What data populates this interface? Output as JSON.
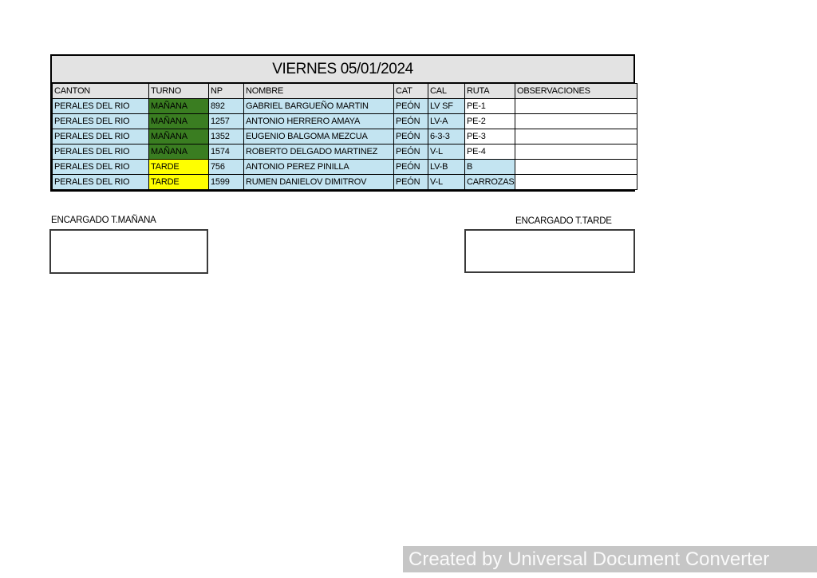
{
  "table": {
    "title": "VIERNES 05/01/2024",
    "columns": [
      "CANTON",
      "TURNO",
      "NP",
      "NOMBRE",
      "CAT",
      "CAL",
      "RUTA",
      "OBSERVACIONES"
    ],
    "rows": [
      {
        "canton": "PERALES DEL RIO",
        "turno": "MAÑANA",
        "turno_color": "green",
        "np": "892",
        "nombre": "GABRIEL BARGUEÑO MARTIN",
        "cat": "PEÓN",
        "cal": "LV SF",
        "ruta": "PE-1",
        "ruta_bg": "white",
        "observaciones": ""
      },
      {
        "canton": "PERALES DEL RIO",
        "turno": "MAÑANA",
        "turno_color": "green",
        "np": "1257",
        "nombre": "ANTONIO HERRERO AMAYA",
        "cat": "PEÓN",
        "cal": "LV-A",
        "ruta": "PE-2",
        "ruta_bg": "white",
        "observaciones": ""
      },
      {
        "canton": "PERALES DEL RIO",
        "turno": "MAÑANA",
        "turno_color": "green",
        "np": "1352",
        "nombre": "EUGENIO BALGOMA MEZCUA",
        "cat": "PEÓN",
        "cal": "6-3-3",
        "ruta": "PE-3",
        "ruta_bg": "white",
        "observaciones": ""
      },
      {
        "canton": "PERALES DEL RIO",
        "turno": "MAÑANA",
        "turno_color": "green",
        "np": "1574",
        "nombre": "ROBERTO DELGADO MARTINEZ",
        "cat": "PEÓN",
        "cal": "V-L",
        "ruta": "PE-4",
        "ruta_bg": "white",
        "observaciones": ""
      },
      {
        "canton": "PERALES DEL RIO",
        "turno": "TARDE",
        "turno_color": "yellow",
        "np": "756",
        "nombre": "ANTONIO PEREZ PINILLA",
        "cat": "PEÓN",
        "cal": "LV-B",
        "ruta": "B",
        "ruta_bg": "blue",
        "observaciones": ""
      },
      {
        "canton": "PERALES DEL RIO",
        "turno": "TARDE",
        "turno_color": "yellow",
        "np": "1599",
        "nombre": "RUMEN DANIELOV DIMITROV",
        "cat": "PEÓN",
        "cal": "V-L",
        "ruta": "CARROZAS",
        "ruta_bg": "blue",
        "observaciones": ""
      }
    ]
  },
  "signatures": {
    "manana_label": "ENCARGADO T.MAÑANA",
    "tarde_label": "ENCARGADO T.TARDE"
  },
  "watermark": {
    "text": "Created by Universal Document Converter"
  },
  "colors": {
    "light_blue": "#c3e4f1",
    "green": "#3a7d21",
    "yellow": "#ffff00",
    "header_gray": "#e3e3e3",
    "table_border": "#000000",
    "watermark_bg": "#c6c6c6",
    "watermark_text": "#fafafa"
  }
}
